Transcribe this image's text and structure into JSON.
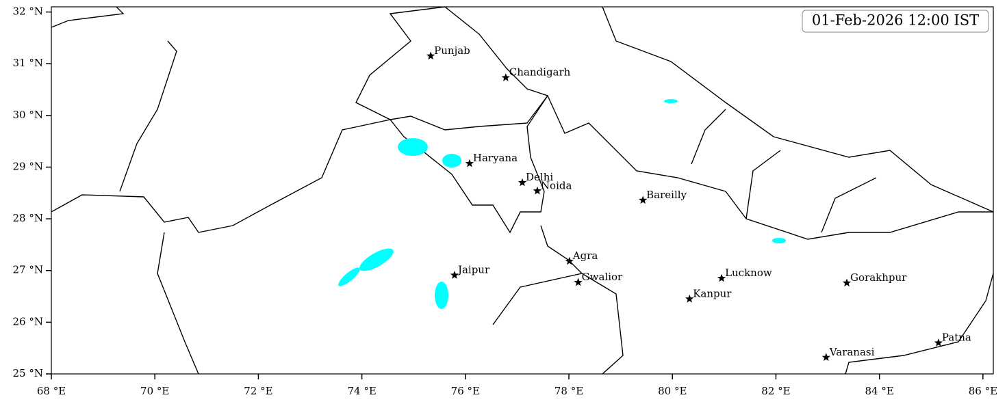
{
  "chart_data": {
    "type": "map",
    "annotation": "01-Feb-2026 12:00 IST",
    "xlim": [
      68,
      86.2
    ],
    "ylim": [
      25,
      32.1
    ],
    "xticks": [
      {
        "value": 68,
        "label": "68 °E"
      },
      {
        "value": 70,
        "label": "70 °E"
      },
      {
        "value": 72,
        "label": "72 °E"
      },
      {
        "value": 74,
        "label": "74 °E"
      },
      {
        "value": 76,
        "label": "76 °E"
      },
      {
        "value": 78,
        "label": "78 °E"
      },
      {
        "value": 80,
        "label": "80 °E"
      },
      {
        "value": 82,
        "label": "82 °E"
      },
      {
        "value": 84,
        "label": "84 °E"
      },
      {
        "value": 86,
        "label": "86 °E"
      }
    ],
    "yticks": [
      {
        "value": 25,
        "label": "25 °N"
      },
      {
        "value": 26,
        "label": "26 °N"
      },
      {
        "value": 27,
        "label": "27 °N"
      },
      {
        "value": 28,
        "label": "28 °N"
      },
      {
        "value": 29,
        "label": "29 °N"
      },
      {
        "value": 30,
        "label": "30 °N"
      },
      {
        "value": 31,
        "label": "31 °N"
      },
      {
        "value": 32,
        "label": "32 °N"
      }
    ],
    "places": [
      {
        "name": "Punjab",
        "lon": 75.33,
        "lat": 31.15
      },
      {
        "name": "Chandigarh",
        "lon": 76.78,
        "lat": 30.73
      },
      {
        "name": "Haryana",
        "lon": 76.08,
        "lat": 29.07
      },
      {
        "name": "Delhi",
        "lon": 77.1,
        "lat": 28.7
      },
      {
        "name": "Noida",
        "lon": 77.39,
        "lat": 28.54
      },
      {
        "name": "Bareilly",
        "lon": 79.43,
        "lat": 28.36
      },
      {
        "name": "Agra",
        "lon": 78.01,
        "lat": 27.18
      },
      {
        "name": "Jaipur",
        "lon": 75.79,
        "lat": 26.91
      },
      {
        "name": "Gwalior",
        "lon": 78.18,
        "lat": 26.77
      },
      {
        "name": "Lucknow",
        "lon": 80.95,
        "lat": 26.85
      },
      {
        "name": "Kanpur",
        "lon": 80.33,
        "lat": 26.45
      },
      {
        "name": "Gorakhpur",
        "lon": 83.37,
        "lat": 26.76
      },
      {
        "name": "Varanasi",
        "lon": 82.97,
        "lat": 25.32
      },
      {
        "name": "Patna",
        "lon": 85.14,
        "lat": 25.6
      }
    ],
    "marker_color": "#000000"
  }
}
